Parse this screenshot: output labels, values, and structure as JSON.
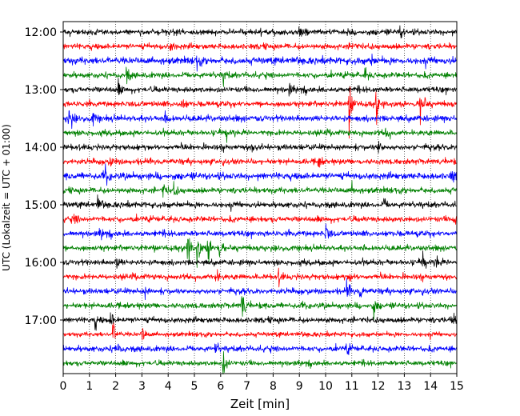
{
  "chart_data": {
    "type": "line",
    "title": "",
    "xlabel": "Zeit  [min]",
    "ylabel": "UTC (Lokalzeit = UTC + 01:00)",
    "xlim": [
      0,
      15
    ],
    "x_ticks": [
      "0",
      "1",
      "2",
      "3",
      "4",
      "5",
      "6",
      "7",
      "8",
      "9",
      "10",
      "11",
      "12",
      "13",
      "14",
      "15"
    ],
    "y_tick_labels": [
      "12:00",
      "13:00",
      "14:00",
      "15:00",
      "16:00",
      "17:00"
    ],
    "y_tick_lines": [
      0,
      4,
      8,
      12,
      16,
      20
    ],
    "grid": "vertical dotted at each minute",
    "line_colors": [
      "#000000",
      "#ff0000",
      "#0000ff",
      "#008000"
    ],
    "trace_interval_minutes": 15,
    "traces": [
      {
        "start": "12:00",
        "color": "#000000",
        "noise": 1.0,
        "events": [
          [
            9.0,
            2.5
          ],
          [
            12.8,
            3.0
          ]
        ]
      },
      {
        "start": "12:15",
        "color": "#ff0000",
        "noise": 1.0,
        "events": [
          [
            4.1,
            2.0
          ],
          [
            11.0,
            2.0
          ]
        ]
      },
      {
        "start": "12:30",
        "color": "#0000ff",
        "noise": 1.2,
        "events": [
          [
            5.1,
            2.0
          ],
          [
            11.7,
            2.0
          ]
        ]
      },
      {
        "start": "12:45",
        "color": "#008000",
        "noise": 1.0,
        "events": [
          [
            2.4,
            3.0
          ],
          [
            6.1,
            2.5
          ],
          [
            11.5,
            2.0
          ]
        ]
      },
      {
        "start": "13:00",
        "color": "#000000",
        "noise": 1.0,
        "events": [
          [
            2.1,
            2.0
          ],
          [
            8.6,
            2.0
          ]
        ]
      },
      {
        "start": "13:15",
        "color": "#ff0000",
        "noise": 1.0,
        "events": [
          [
            4.5,
            2.5
          ],
          [
            10.9,
            9.0
          ],
          [
            11.9,
            6.0
          ],
          [
            13.6,
            8.0
          ]
        ]
      },
      {
        "start": "13:30",
        "color": "#0000ff",
        "noise": 1.1,
        "events": [
          [
            0.2,
            6.0
          ],
          [
            1.1,
            3.0
          ],
          [
            3.9,
            2.0
          ]
        ]
      },
      {
        "start": "13:45",
        "color": "#008000",
        "noise": 1.0,
        "events": [
          [
            6.2,
            3.0
          ],
          [
            12.3,
            2.0
          ]
        ]
      },
      {
        "start": "14:00",
        "color": "#000000",
        "noise": 1.0,
        "events": [
          [
            7.2,
            3.0
          ],
          [
            12.0,
            3.0
          ]
        ]
      },
      {
        "start": "14:15",
        "color": "#ff0000",
        "noise": 1.0,
        "events": [
          [
            1.8,
            2.0
          ],
          [
            9.7,
            3.0
          ]
        ]
      },
      {
        "start": "14:30",
        "color": "#0000ff",
        "noise": 1.2,
        "events": [
          [
            1.6,
            3.0
          ],
          [
            14.8,
            2.5
          ]
        ]
      },
      {
        "start": "14:45",
        "color": "#008000",
        "noise": 1.0,
        "events": [
          [
            3.8,
            2.5
          ],
          [
            4.2,
            2.5
          ],
          [
            11.0,
            2.0
          ]
        ]
      },
      {
        "start": "15:00",
        "color": "#000000",
        "noise": 1.0,
        "events": [
          [
            1.3,
            3.0
          ],
          [
            12.2,
            2.0
          ]
        ]
      },
      {
        "start": "15:15",
        "color": "#ff0000",
        "noise": 1.0,
        "events": [
          [
            0.4,
            2.0
          ],
          [
            14.9,
            2.5
          ]
        ]
      },
      {
        "start": "15:30",
        "color": "#0000ff",
        "noise": 1.0,
        "events": [
          [
            1.4,
            2.0
          ],
          [
            10.0,
            3.5
          ]
        ]
      },
      {
        "start": "15:45",
        "color": "#008000",
        "noise": 1.0,
        "events": [
          [
            4.7,
            9.0
          ],
          [
            5.1,
            6.0
          ],
          [
            5.5,
            6.0
          ],
          [
            5.9,
            4.0
          ]
        ]
      },
      {
        "start": "16:00",
        "color": "#000000",
        "noise": 1.0,
        "events": [
          [
            2.0,
            3.0
          ],
          [
            13.7,
            4.0
          ],
          [
            14.2,
            3.0
          ]
        ]
      },
      {
        "start": "16:15",
        "color": "#ff0000",
        "noise": 1.0,
        "events": [
          [
            5.8,
            3.0
          ],
          [
            8.2,
            2.5
          ],
          [
            10.9,
            2.0
          ]
        ]
      },
      {
        "start": "16:30",
        "color": "#0000ff",
        "noise": 1.0,
        "events": [
          [
            3.1,
            2.0
          ],
          [
            10.8,
            3.0
          ],
          [
            11.3,
            2.5
          ]
        ]
      },
      {
        "start": "16:45",
        "color": "#008000",
        "noise": 1.0,
        "events": [
          [
            6.8,
            7.0
          ],
          [
            11.8,
            4.0
          ]
        ]
      },
      {
        "start": "17:00",
        "color": "#000000",
        "noise": 1.0,
        "events": [
          [
            1.2,
            3.0
          ],
          [
            1.8,
            3.0
          ],
          [
            14.8,
            2.5
          ]
        ]
      },
      {
        "start": "17:15",
        "color": "#ff0000",
        "noise": 0.8,
        "events": [
          [
            1.9,
            5.0
          ],
          [
            3.0,
            3.0
          ]
        ]
      },
      {
        "start": "17:30",
        "color": "#0000ff",
        "noise": 1.0,
        "events": [
          [
            2.0,
            3.0
          ],
          [
            5.8,
            2.0
          ],
          [
            10.8,
            2.0
          ]
        ]
      },
      {
        "start": "17:45",
        "color": "#008000",
        "noise": 0.9,
        "events": [
          [
            6.1,
            6.0
          ]
        ]
      }
    ]
  }
}
